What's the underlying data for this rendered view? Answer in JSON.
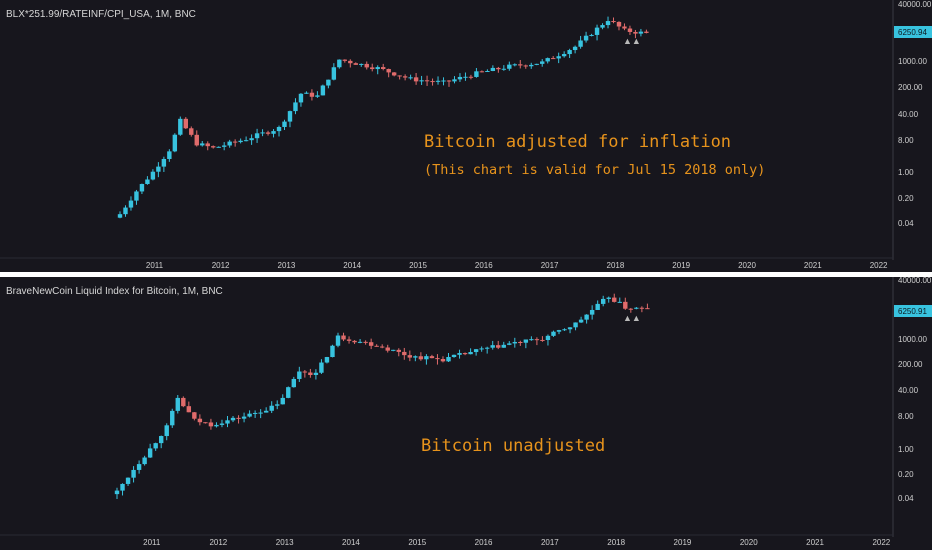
{
  "colors": {
    "background": "#17161d",
    "up": "#38c3df",
    "down": "#e06b6b",
    "price_tag": "#38c3df",
    "annotation": "#e7931c",
    "separator": "#ffffff"
  },
  "chart_data": [
    {
      "type": "candlestick",
      "title": "BLX*251.99/RATEINF/CPI_USA, 1M, BNC",
      "annotation_title": "Bitcoin adjusted for inflation",
      "annotation_subtitle": "(This chart is valid for Jul 15 2018 only)",
      "y_scale": "log",
      "y_ticks": [
        "40000.00",
        "1000.00",
        "200.00",
        "40.00",
        "8.00",
        "1.00",
        "0.20",
        "0.04"
      ],
      "last_price_label": "6250.94",
      "x_ticks": [
        "2011",
        "2012",
        "2013",
        "2014",
        "2015",
        "2016",
        "2017",
        "2018",
        "2019",
        "2020",
        "2021",
        "2022"
      ],
      "xlim": [
        "2010-07",
        "2022-03"
      ],
      "markers": [
        "▲▲"
      ],
      "close_series": [
        {
          "x": "2010-07",
          "y": 0.07
        },
        {
          "x": "2010-10",
          "y": 0.3
        },
        {
          "x": "2011-01",
          "y": 1.0
        },
        {
          "x": "2011-04",
          "y": 4.0
        },
        {
          "x": "2011-06",
          "y": 25
        },
        {
          "x": "2011-09",
          "y": 6
        },
        {
          "x": "2011-12",
          "y": 4.5
        },
        {
          "x": "2012-06",
          "y": 8
        },
        {
          "x": "2012-12",
          "y": 16
        },
        {
          "x": "2013-04",
          "y": 140
        },
        {
          "x": "2013-07",
          "y": 120
        },
        {
          "x": "2013-11",
          "y": 1200
        },
        {
          "x": "2014-06",
          "y": 700
        },
        {
          "x": "2014-12",
          "y": 350
        },
        {
          "x": "2015-06",
          "y": 280
        },
        {
          "x": "2015-12",
          "y": 500
        },
        {
          "x": "2016-06",
          "y": 780
        },
        {
          "x": "2016-12",
          "y": 1000
        },
        {
          "x": "2017-06",
          "y": 2700
        },
        {
          "x": "2017-12",
          "y": 15000
        },
        {
          "x": "2018-03",
          "y": 7500
        },
        {
          "x": "2018-07",
          "y": 6250
        }
      ]
    },
    {
      "type": "candlestick",
      "title": "BraveNewCoin Liquid Index for Bitcoin, 1M, BNC",
      "annotation_title": "Bitcoin unadjusted",
      "y_scale": "log",
      "y_ticks": [
        "40000.00",
        "1000.00",
        "200.00",
        "40.00",
        "8.00",
        "1.00",
        "0.20",
        "0.04"
      ],
      "last_price_label": "6250.91",
      "x_ticks": [
        "2011",
        "2012",
        "2013",
        "2014",
        "2015",
        "2016",
        "2017",
        "2018",
        "2019",
        "2020",
        "2021",
        "2022"
      ],
      "xlim": [
        "2010-07",
        "2022-03"
      ],
      "markers": [
        "▲▲"
      ],
      "close_series": [
        {
          "x": "2010-07",
          "y": 0.06
        },
        {
          "x": "2010-10",
          "y": 0.25
        },
        {
          "x": "2011-01",
          "y": 0.9
        },
        {
          "x": "2011-04",
          "y": 3.6
        },
        {
          "x": "2011-06",
          "y": 22
        },
        {
          "x": "2011-09",
          "y": 5.5
        },
        {
          "x": "2011-12",
          "y": 4.2
        },
        {
          "x": "2012-06",
          "y": 7
        },
        {
          "x": "2012-12",
          "y": 14
        },
        {
          "x": "2013-04",
          "y": 125
        },
        {
          "x": "2013-07",
          "y": 105
        },
        {
          "x": "2013-11",
          "y": 1100
        },
        {
          "x": "2014-06",
          "y": 640
        },
        {
          "x": "2014-12",
          "y": 320
        },
        {
          "x": "2015-06",
          "y": 260
        },
        {
          "x": "2015-12",
          "y": 450
        },
        {
          "x": "2016-06",
          "y": 700
        },
        {
          "x": "2016-12",
          "y": 960
        },
        {
          "x": "2017-06",
          "y": 2500
        },
        {
          "x": "2017-12",
          "y": 14000
        },
        {
          "x": "2018-03",
          "y": 7000
        },
        {
          "x": "2018-07",
          "y": 6250
        }
      ]
    }
  ]
}
